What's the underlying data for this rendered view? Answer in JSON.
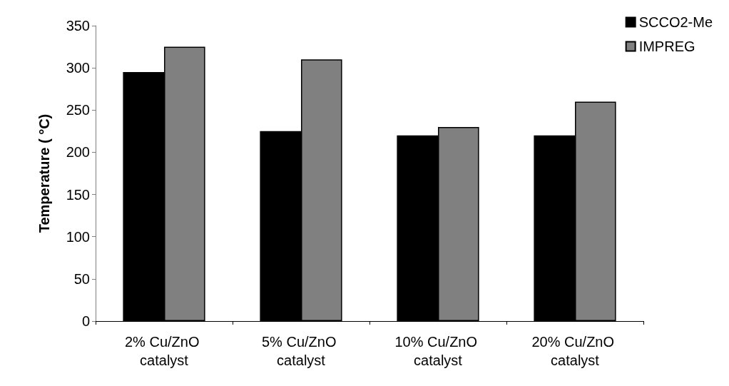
{
  "chart_data": {
    "type": "bar",
    "ylabel": "Temperature ( °C)",
    "categories": [
      "2% Cu/ZnO catalyst",
      "5% Cu/ZnO catalyst",
      "10% Cu/ZnO catalyst",
      "20% Cu/ZnO catalyst"
    ],
    "series": [
      {
        "name": "SCCO2-Me",
        "color": "#000000",
        "values": [
          295,
          225,
          220,
          220
        ]
      },
      {
        "name": "IMPREG",
        "color": "#808080",
        "values": [
          325,
          310,
          230,
          260
        ]
      }
    ],
    "ylim": [
      0,
      350
    ],
    "yticks": [
      0,
      50,
      100,
      150,
      200,
      250,
      300,
      350
    ],
    "grid": false,
    "legend": "top right"
  }
}
